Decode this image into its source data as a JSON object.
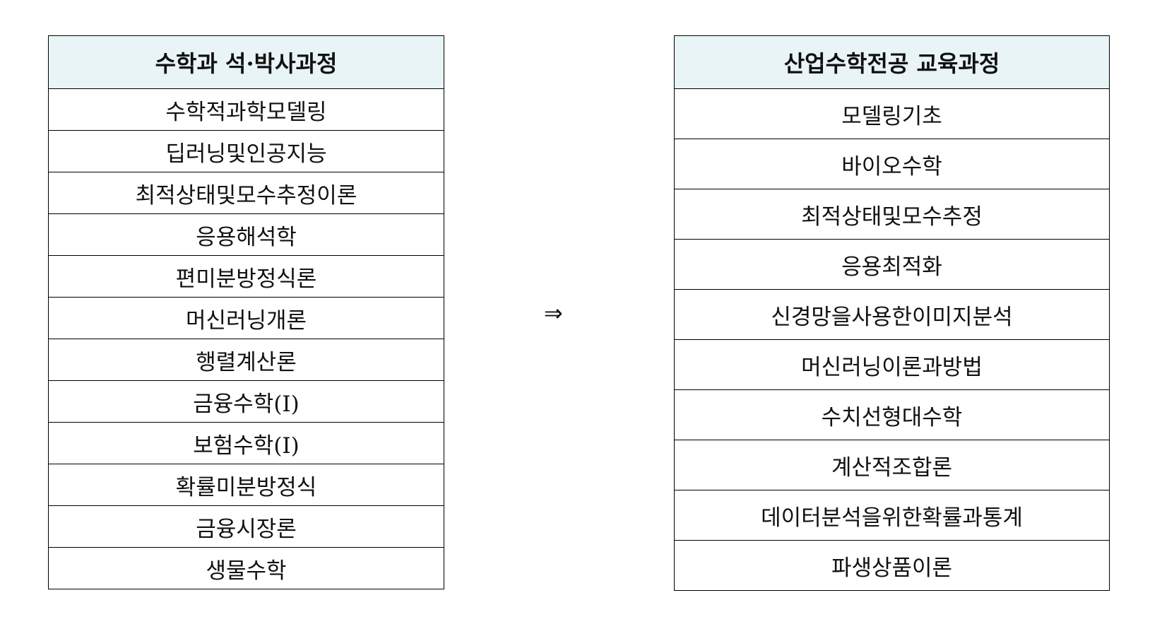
{
  "left_table": {
    "header": "수학과 석·박사과정",
    "rows": [
      "수학적과학모델링",
      "딥러닝및인공지능",
      "최적상태및모수추정이론",
      "응용해석학",
      "편미분방정식론",
      "머신러닝개론",
      "행렬계산론",
      "금융수학(I)",
      "보험수학(I)",
      "확률미분방정식",
      "금융시장론",
      "생물수학"
    ]
  },
  "arrow": "⇒",
  "right_table": {
    "header": "산업수학전공 교육과정",
    "rows": [
      "모델링기초",
      "바이오수학",
      "최적상태및모수추정",
      "응용최적화",
      "신경망을사용한이미지분석",
      "머신러닝이론과방법",
      "수치선형대수학",
      "계산적조합론",
      "데이터분석을위한확률과통계",
      "파생상품이론"
    ]
  },
  "colors": {
    "header_bg": "#e8f4f6",
    "border": "#000000"
  }
}
